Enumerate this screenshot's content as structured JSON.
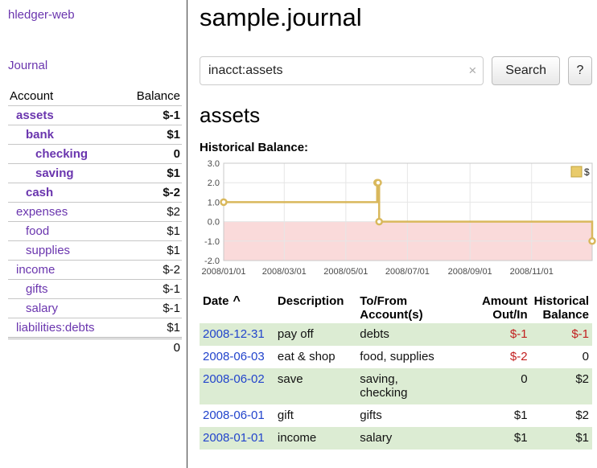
{
  "app": {
    "title": "hledger-web"
  },
  "sidebar": {
    "journal_link": "Journal",
    "accounts_table": {
      "account_header": "Account",
      "balance_header": "Balance",
      "rows": [
        {
          "name": "assets",
          "balance": "$-1",
          "level": 1,
          "selected": true,
          "balance_tone": "negative"
        },
        {
          "name": "bank",
          "balance": "$1",
          "level": 2,
          "selected": true,
          "balance_tone": "normal"
        },
        {
          "name": "checking",
          "balance": "0",
          "level": 3,
          "selected": true,
          "balance_tone": "normal"
        },
        {
          "name": "saving",
          "balance": "$1",
          "level": 3,
          "selected": true,
          "balance_tone": "normal"
        },
        {
          "name": "cash",
          "balance": "$-2",
          "level": 2,
          "selected": true,
          "balance_tone": "negative"
        },
        {
          "name": "expenses",
          "balance": "$2",
          "level": 1,
          "selected": false,
          "balance_tone": "normal"
        },
        {
          "name": "food",
          "balance": "$1",
          "level": 2,
          "selected": false,
          "balance_tone": "normal"
        },
        {
          "name": "supplies",
          "balance": "$1",
          "level": 2,
          "selected": false,
          "balance_tone": "normal"
        },
        {
          "name": "income",
          "balance": "$-2",
          "level": 1,
          "selected": false,
          "balance_tone": "negative-dim"
        },
        {
          "name": "gifts",
          "balance": "$-1",
          "level": 2,
          "selected": false,
          "balance_tone": "negative-dim"
        },
        {
          "name": "salary",
          "balance": "$-1",
          "level": 2,
          "selected": false,
          "balance_tone": "negative-dim"
        },
        {
          "name": "liabilities:debts",
          "balance": "$1",
          "level": 1,
          "selected": false,
          "balance_tone": "normal"
        }
      ],
      "total": "0"
    }
  },
  "main": {
    "title": "sample.journal",
    "search": {
      "value": "inacct:assets",
      "clear_icon": "×",
      "search_button": "Search",
      "help_button": "?"
    },
    "account_heading": "assets",
    "chart_title": "Historical Balance:"
  },
  "chart_data": {
    "type": "line",
    "step": true,
    "title": "Historical Balance",
    "legend": {
      "label": "$",
      "position": "top-right"
    },
    "x_start": "2008-01-01",
    "x_end": "2008-12-31",
    "x_ticks": [
      "2008/01/01",
      "2008/03/01",
      "2008/05/01",
      "2008/07/01",
      "2008/09/01",
      "2008/11/01"
    ],
    "y_ticks": [
      3,
      2,
      1,
      0,
      -1,
      -2
    ],
    "ylim": [
      -2,
      3
    ],
    "series": [
      {
        "name": "$",
        "points": [
          [
            "2008-01-01",
            1
          ],
          [
            "2008-06-01",
            2
          ],
          [
            "2008-06-02",
            2
          ],
          [
            "2008-06-03",
            0
          ],
          [
            "2008-12-31",
            -1
          ]
        ]
      }
    ],
    "colors": {
      "line": "#d9b85c",
      "marker_fill": "#ffffff",
      "legend_fill": "#e9cb6b",
      "legend_border": "#bfa03e",
      "negative_region": "#fadada",
      "grid": "#e6e6e6",
      "border": "#c8c8c8"
    }
  },
  "register": {
    "headers": {
      "date": "Date",
      "sort_indicator": "^",
      "description": "Description",
      "accounts": "To/From Account(s)",
      "amount": "Amount Out/In",
      "balance": "Historical Balance"
    },
    "rows": [
      {
        "date": "2008-12-31",
        "description": "pay off",
        "accounts": "debts",
        "amount": "$-1",
        "amount_negative": true,
        "balance": "$-1",
        "balance_negative": true,
        "highlight": true
      },
      {
        "date": "2008-06-03",
        "description": "eat & shop",
        "accounts": "food, supplies",
        "amount": "$-2",
        "amount_negative": true,
        "balance": "0",
        "balance_negative": false,
        "highlight": false
      },
      {
        "date": "2008-06-02",
        "description": "save",
        "accounts": "saving,\nchecking",
        "amount": "0",
        "amount_negative": false,
        "balance": "$2",
        "balance_negative": false,
        "highlight": true
      },
      {
        "date": "2008-06-01",
        "description": "gift",
        "accounts": "gifts",
        "amount": "$1",
        "amount_negative": false,
        "balance": "$2",
        "balance_negative": false,
        "highlight": false
      },
      {
        "date": "2008-01-01",
        "description": "income",
        "accounts": "salary",
        "amount": "$1",
        "amount_negative": false,
        "balance": "$1",
        "balance_negative": false,
        "highlight": true
      }
    ]
  }
}
